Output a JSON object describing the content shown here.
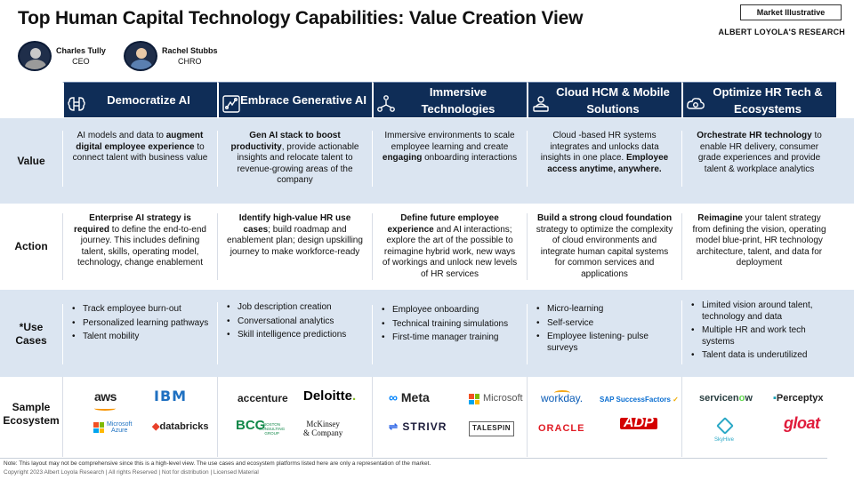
{
  "title": "Top Human Capital Technology Capabilities: Value Creation View",
  "badge": "Market Illustrative",
  "brand": "ALBERT LOYOLA'S RESEARCH",
  "people": [
    {
      "name": "Charles Tully",
      "role": "CEO"
    },
    {
      "name": "Rachel Stubbs",
      "role": "CHRO"
    }
  ],
  "columns": [
    {
      "label": "Democratize AI",
      "icon": "ai-brain-icon"
    },
    {
      "label": "Embrace Generative AI",
      "icon": "brain-circuit-icon"
    },
    {
      "label": "Immersive Technologies",
      "icon": "network-people-icon"
    },
    {
      "label": "Cloud HCM & Mobile Solutions",
      "icon": "laptop-user-icon"
    },
    {
      "label": "Optimize HR Tech & Ecosystems",
      "icon": "cloud-gear-icon"
    }
  ],
  "row_labels": {
    "value": "Value",
    "action": "Action",
    "uses": "*Use Cases",
    "eco": "Sample Ecosystem"
  },
  "value": [
    {
      "pre": "AI models and data to ",
      "bold": "augment digital employee experience",
      "post": " to connect talent with business value"
    },
    {
      "pre": "",
      "bold": "Gen AI stack to boost productivity",
      "post": ", provide actionable insights and relocate talent to revenue-growing areas of the company"
    },
    {
      "pre": "Immersive environments to scale employee learning and create ",
      "bold": "engaging",
      "post": " onboarding interactions"
    },
    {
      "pre": "Cloud -based HR systems integrates and unlocks data insights in one place. ",
      "bold": "Employee access anytime, anywhere.",
      "post": ""
    },
    {
      "pre": "",
      "bold": "Orchestrate HR technology",
      "post": " to enable HR delivery, consumer grade experiences and provide talent & workplace analytics"
    }
  ],
  "action": [
    {
      "pre": "",
      "bold": "Enterprise AI strategy is required",
      "post": " to define the end-to-end journey. This includes defining talent, skills, operating model, technology, change enablement"
    },
    {
      "pre": "",
      "bold": "Identify high-value HR use cases",
      "post": "; build roadmap and enablement plan; design upskilling journey to make workforce-ready"
    },
    {
      "pre": "",
      "bold": "Define future employee experience",
      "post": " and AI interactions; explore the art of the possible to reimagine hybrid work, new ways of workings and unlock new levels of HR services"
    },
    {
      "pre": "",
      "bold": "Build a strong cloud foundation",
      "post": " strategy to optimize the complexity of cloud environments and integrate human capital systems for common services and applications"
    },
    {
      "pre": "",
      "bold": "Reimagine",
      "post": " your talent strategy from defining the vision, operating model blue-print, HR technology architecture, talent, and data for deployment"
    }
  ],
  "uses": [
    [
      "Track employee burn-out",
      "Personalized learning pathways",
      "Talent mobility"
    ],
    [
      "Job description creation",
      "Conversational analytics",
      "Skill intelligence predictions"
    ],
    [
      "Employee onboarding",
      "Technical training simulations",
      "First-time manager training"
    ],
    [
      "Micro-learning",
      "Self-service",
      "Employee listening- pulse surveys"
    ],
    [
      "Limited vision around talent, technology and data",
      "Multiple HR and work tech systems",
      "Talent data is underutilized"
    ]
  ],
  "logos": {
    "aws": "aws",
    "ibm": "IBM",
    "ms_azure_1": "Microsoft",
    "ms_azure_2": "Azure",
    "databricks": "databricks",
    "accenture": "accenture",
    "deloitte": "Deloitte",
    "deloitte_dot": ".",
    "bcg": "BCG",
    "bcg_sub_1": "BOSTON",
    "bcg_sub_2": "CONSULTING",
    "bcg_sub_3": "GROUP",
    "mck_1": "McKinsey",
    "mck_2": "& Company",
    "meta": "Meta",
    "meta_mark": "∞",
    "microsoft": "Microsoft",
    "strivr": "STRIVR",
    "talespin": "TALESPIN",
    "workday": "workday.",
    "sap_1": "SAP ",
    "sap_2": "SuccessFactors",
    "oracle": "ORACLE",
    "adp": "ADP",
    "servicenow_1": "servicen",
    "servicenow_2": "o",
    "servicenow_3": "w",
    "perceptyx_mark": "▪",
    "perceptyx": "Perceptyx",
    "skyhive": "SkyHive",
    "gloat": "gloat"
  },
  "colors": {
    "header": "#0f2d57",
    "band": "#dbe5f1",
    "ms_red": "#f25022",
    "ms_green": "#7fba00",
    "ms_blue": "#00a4ef",
    "ms_yellow": "#ffb900"
  },
  "footer": {
    "note": "Note: This layout  may not be comprehensive since this is a high-level view. The use cases and ecosystem platforms listed here are only a representation of the market.",
    "copyright": "Copyright 2023 Albert Loyola Research | All rights Reserved | Not for distribution | Licensed Material"
  }
}
